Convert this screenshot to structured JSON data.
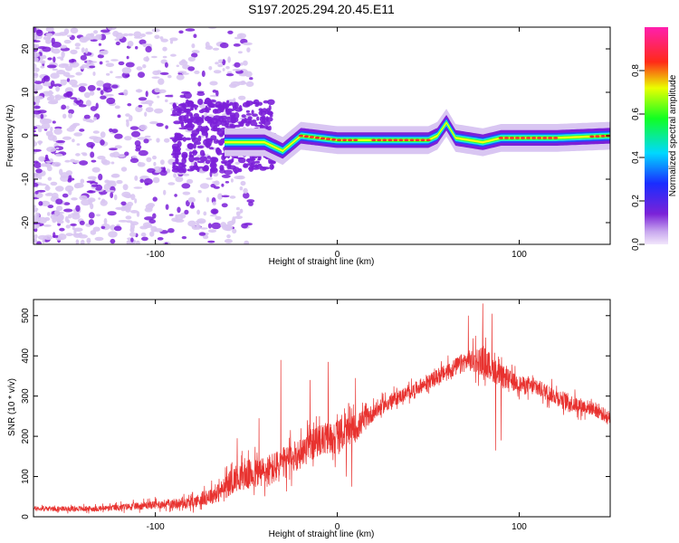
{
  "title": "S197.2025.294.20.45.E11",
  "colors": {
    "snr_line": "#e8322f",
    "spectrogram_low": "#7b1fd8",
    "spectrogram_faint": "#d9c6f2",
    "ridge": "#ff2d2d"
  },
  "chart_data": [
    {
      "type": "heatmap",
      "title": "S197.2025.294.20.45.E11",
      "xlabel": "Height of straight line (km)",
      "ylabel": "Frequency (Hz)",
      "xlim": [
        -167,
        150
      ],
      "ylim": [
        -25,
        25
      ],
      "xticks": [
        -100,
        0,
        100
      ],
      "xtick_labels": [
        "-100",
        "0",
        "100"
      ],
      "yticks": [
        20,
        10,
        0,
        -10,
        -20
      ],
      "ytick_labels": [
        "20",
        "10",
        "0",
        "-10",
        "-20"
      ],
      "colorbar": {
        "label": "Normalized spectral amplitude",
        "range": [
          0.0,
          1.0
        ],
        "ticks": [
          0.0,
          0.2,
          0.4,
          0.6,
          0.8
        ],
        "tick_labels": [
          "0.0",
          "0.2",
          "0.4",
          "0.6",
          "0.8"
        ],
        "colormap": "rainbow (purple-blue-cyan-green-yellow-red-magenta)"
      },
      "ridge_frequency": [
        {
          "x": -60,
          "f": -1.5
        },
        {
          "x": -40,
          "f": -1.5
        },
        {
          "x": -30,
          "f": -3.5
        },
        {
          "x": -20,
          "f": 0
        },
        {
          "x": 0,
          "f": -1
        },
        {
          "x": 20,
          "f": -1
        },
        {
          "x": 50,
          "f": -1
        },
        {
          "x": 55,
          "f": 0
        },
        {
          "x": 60,
          "f": 3
        },
        {
          "x": 65,
          "f": -0.5
        },
        {
          "x": 80,
          "f": -1.5
        },
        {
          "x": 90,
          "f": -0.5
        },
        {
          "x": 120,
          "f": -0.5
        },
        {
          "x": 150,
          "f": 0
        }
      ]
    },
    {
      "type": "line",
      "xlabel": "Height of straight line (km)",
      "ylabel": "SNR (10 * v/v)",
      "xlim": [
        -167,
        150
      ],
      "ylim": [
        0,
        540
      ],
      "xticks": [
        -100,
        0,
        100
      ],
      "xtick_labels": [
        "-100",
        "0",
        "100"
      ],
      "yticks": [
        0,
        100,
        200,
        300,
        400,
        500
      ],
      "ytick_labels": [
        "0",
        "100",
        "200",
        "300",
        "400",
        "500"
      ],
      "series": [
        {
          "name": "SNR",
          "envelope": [
            {
              "x": -167,
              "mean": 20,
              "spread": 8
            },
            {
              "x": -130,
              "mean": 20,
              "spread": 10
            },
            {
              "x": -100,
              "mean": 30,
              "spread": 15
            },
            {
              "x": -80,
              "mean": 35,
              "spread": 20
            },
            {
              "x": -65,
              "mean": 60,
              "spread": 35
            },
            {
              "x": -55,
              "mean": 100,
              "spread": 50
            },
            {
              "x": -40,
              "mean": 110,
              "spread": 60
            },
            {
              "x": -30,
              "mean": 130,
              "spread": 60
            },
            {
              "x": -20,
              "mean": 160,
              "spread": 55
            },
            {
              "x": -10,
              "mean": 190,
              "spread": 55
            },
            {
              "x": 0,
              "mean": 200,
              "spread": 60
            },
            {
              "x": 10,
              "mean": 220,
              "spread": 50
            },
            {
              "x": 20,
              "mean": 260,
              "spread": 30
            },
            {
              "x": 30,
              "mean": 290,
              "spread": 25
            },
            {
              "x": 40,
              "mean": 310,
              "spread": 25
            },
            {
              "x": 50,
              "mean": 335,
              "spread": 25
            },
            {
              "x": 60,
              "mean": 360,
              "spread": 30
            },
            {
              "x": 70,
              "mean": 385,
              "spread": 35
            },
            {
              "x": 80,
              "mean": 390,
              "spread": 55
            },
            {
              "x": 90,
              "mean": 350,
              "spread": 40
            },
            {
              "x": 100,
              "mean": 330,
              "spread": 30
            },
            {
              "x": 110,
              "mean": 320,
              "spread": 30
            },
            {
              "x": 120,
              "mean": 300,
              "spread": 30
            },
            {
              "x": 130,
              "mean": 280,
              "spread": 30
            },
            {
              "x": 140,
              "mean": 270,
              "spread": 25
            },
            {
              "x": 150,
              "mean": 245,
              "spread": 25
            }
          ],
          "spikes": [
            {
              "x": -55,
              "value": 195
            },
            {
              "x": -43,
              "value": 245
            },
            {
              "x": -31,
              "value": 390
            },
            {
              "x": -20,
              "value": 220
            },
            {
              "x": -15,
              "value": 340
            },
            {
              "x": -5,
              "value": 385
            },
            {
              "x": 5,
              "value": 100
            },
            {
              "x": 8,
              "value": 75
            },
            {
              "x": 10,
              "value": 345
            },
            {
              "x": 72,
              "value": 500
            },
            {
              "x": 76,
              "value": 450
            },
            {
              "x": 80,
              "value": 530
            },
            {
              "x": 85,
              "value": 505
            },
            {
              "x": 87,
              "value": 165
            },
            {
              "x": 90,
              "value": 190
            }
          ]
        }
      ]
    }
  ]
}
